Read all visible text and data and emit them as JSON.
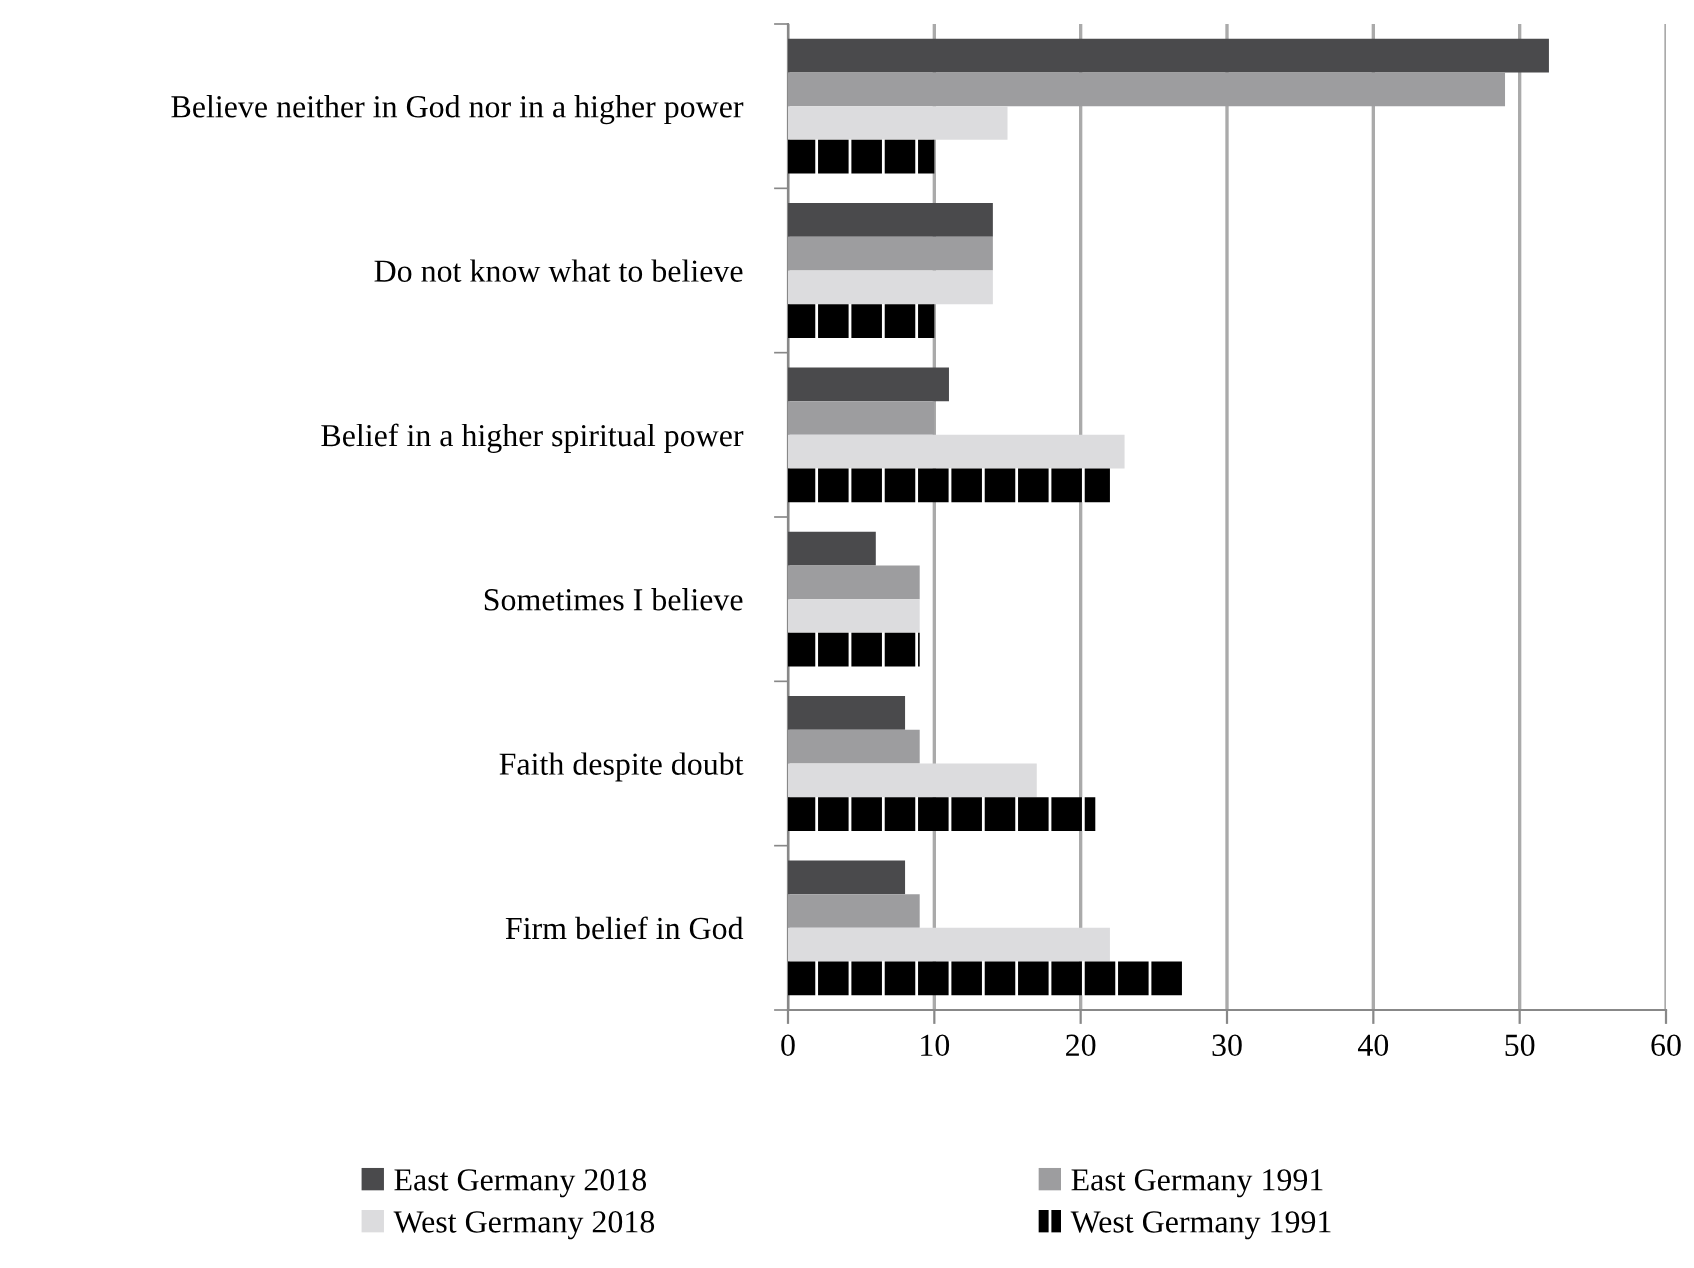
{
  "chart_data": {
    "type": "bar",
    "orientation": "horizontal",
    "categories": [
      "Believe neither in God nor in a higher power",
      "Do not know what to believe",
      "Belief in a higher spiritual power",
      "Sometimes I believe",
      "Faith despite doubt",
      "Firm belief in God"
    ],
    "series": [
      {
        "name": "East Germany 2018",
        "color": "#4a4a4c",
        "values": [
          52,
          14,
          11,
          6,
          8,
          8
        ]
      },
      {
        "name": "East Germany 1991",
        "color": "#9d9d9f",
        "values": [
          49,
          14,
          10,
          9,
          9,
          9
        ]
      },
      {
        "name": "West Germany 2018",
        "color": "#dcdcde",
        "values": [
          15,
          14,
          23,
          9,
          17,
          22
        ]
      },
      {
        "name": "West Germany 1991",
        "color": "#000000",
        "values": [
          10,
          10,
          22,
          9,
          21,
          27
        ]
      }
    ],
    "xlim": [
      0,
      60
    ],
    "xticks": [
      0,
      10,
      20,
      30,
      40,
      50,
      60
    ],
    "grid": "x",
    "legend": "bottom"
  }
}
